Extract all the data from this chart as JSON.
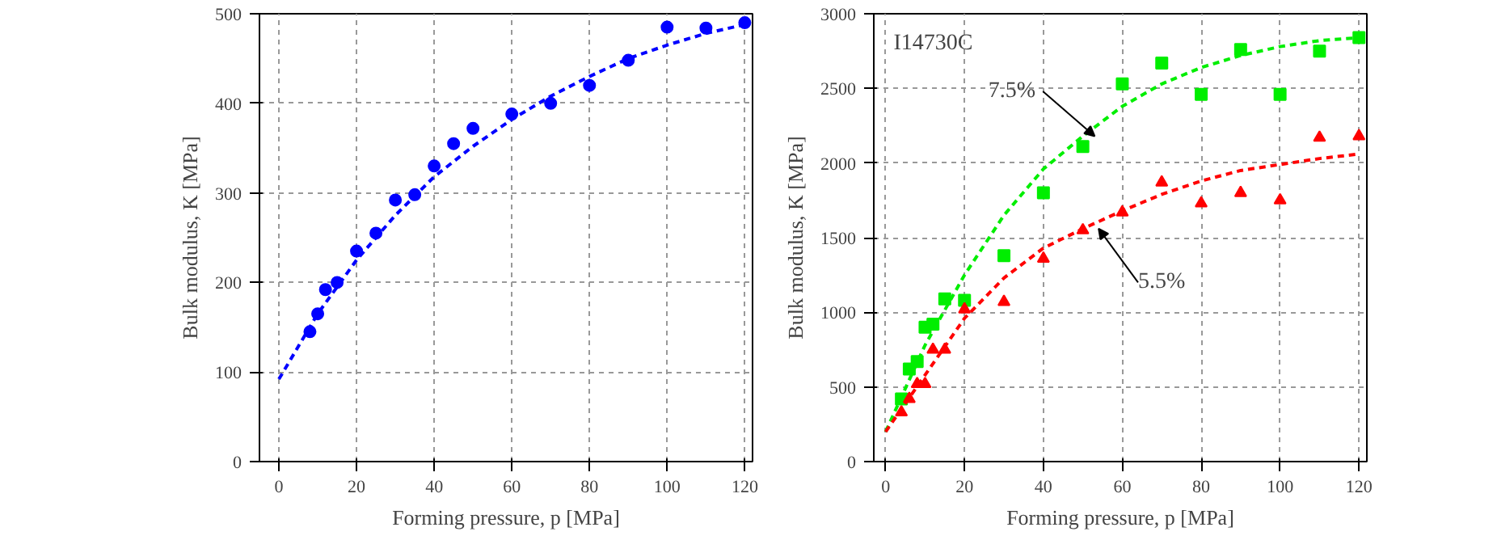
{
  "chart_data": [
    {
      "type": "scatter",
      "xlabel": "Forming pressure, p [MPa]",
      "ylabel": "Bulk modulus, K [MPa]",
      "xlim": [
        -5,
        122
      ],
      "ylim": [
        0,
        500
      ],
      "xticks": [
        0,
        20,
        40,
        60,
        80,
        100,
        120
      ],
      "yticks": [
        0,
        100,
        200,
        300,
        400,
        500
      ],
      "grid": true,
      "series": [
        {
          "marker": "circle",
          "color": "#0000ff",
          "x": [
            8,
            10,
            12,
            15,
            20,
            25,
            30,
            35,
            40,
            45,
            50,
            60,
            70,
            80,
            90,
            100,
            110,
            120
          ],
          "values": [
            145,
            165,
            192,
            200,
            235,
            255,
            292,
            298,
            330,
            355,
            372,
            388,
            400,
            420,
            448,
            485,
            484,
            490
          ]
        },
        {
          "type": "line",
          "line_style": "dashed",
          "color": "#0000ff",
          "x": [
            0,
            10,
            20,
            30,
            40,
            50,
            60,
            70,
            80,
            90,
            100,
            110,
            120
          ],
          "values": [
            92,
            165,
            225,
            275,
            318,
            352,
            382,
            408,
            430,
            450,
            465,
            478,
            488
          ]
        }
      ]
    },
    {
      "type": "scatter",
      "title": "I14730C",
      "xlabel": "Forming pressure, p [MPa]",
      "ylabel": "Bulk modulus, K [MPa]",
      "xlim": [
        -3,
        122
      ],
      "ylim": [
        0,
        3000
      ],
      "xticks": [
        0,
        20,
        40,
        60,
        80,
        100,
        120
      ],
      "yticks": [
        0,
        500,
        1000,
        1500,
        2000,
        2500,
        3000
      ],
      "grid": true,
      "annotations": [
        {
          "text": "7.5%",
          "x": 53,
          "y": 2180
        },
        {
          "text": "5.5%",
          "x": 54,
          "y": 1560
        }
      ],
      "series": [
        {
          "marker": "square",
          "color": "#00ee00",
          "x": [
            4,
            6,
            8,
            10,
            12,
            15,
            20,
            30,
            40,
            50,
            60,
            70,
            80,
            90,
            100,
            110,
            120
          ],
          "values": [
            420,
            620,
            670,
            900,
            920,
            1090,
            1080,
            1380,
            1800,
            2110,
            2530,
            2670,
            2460,
            2760,
            2460,
            2750,
            2840
          ]
        },
        {
          "marker": "triangle",
          "color": "#ff0000",
          "x": [
            4,
            6,
            8,
            10,
            12,
            15,
            20,
            30,
            40,
            50,
            60,
            70,
            80,
            90,
            100,
            110,
            120
          ],
          "values": [
            330,
            420,
            520,
            520,
            750,
            750,
            1020,
            1070,
            1360,
            1550,
            1670,
            1870,
            1730,
            1800,
            1750,
            2170,
            2180
          ]
        },
        {
          "type": "line",
          "line_style": "dashed",
          "color": "#00ee00",
          "x": [
            0,
            10,
            20,
            30,
            40,
            50,
            60,
            70,
            80,
            90,
            100,
            110,
            120
          ],
          "values": [
            200,
            780,
            1250,
            1650,
            1960,
            2180,
            2380,
            2530,
            2640,
            2720,
            2780,
            2820,
            2840
          ]
        },
        {
          "type": "line",
          "line_style": "dashed",
          "color": "#ff0000",
          "x": [
            0,
            10,
            20,
            30,
            40,
            50,
            60,
            70,
            80,
            90,
            100,
            110,
            120
          ],
          "values": [
            200,
            580,
            960,
            1230,
            1430,
            1560,
            1680,
            1790,
            1880,
            1950,
            1990,
            2030,
            2060
          ]
        }
      ]
    }
  ]
}
